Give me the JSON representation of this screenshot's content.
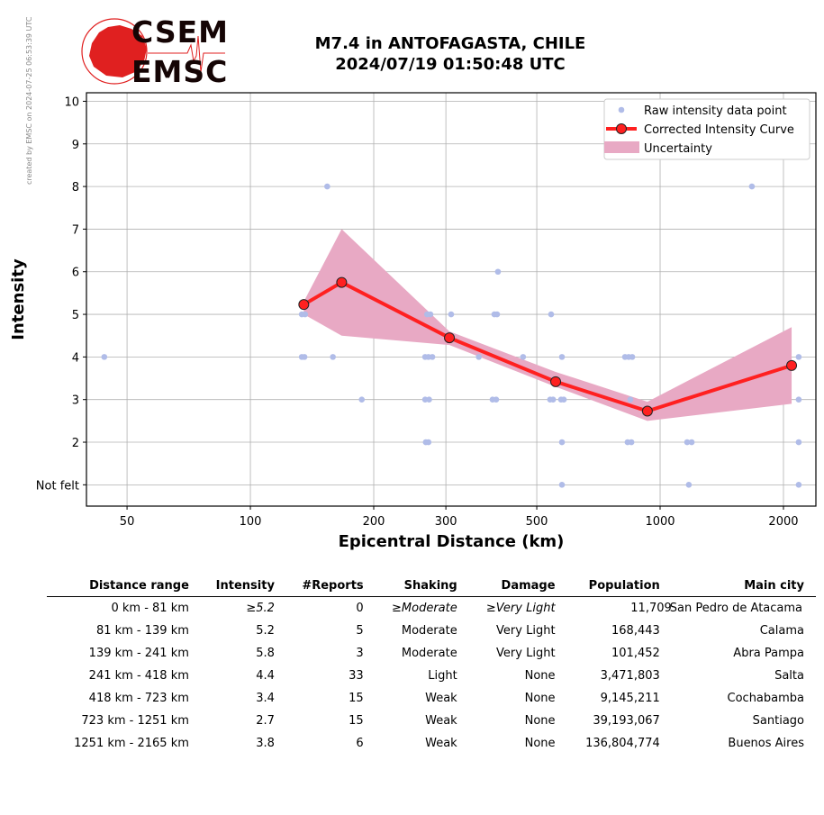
{
  "stamp": "created by EMSC on 2024-07-25 06:53:39 UTC",
  "logo": {
    "top": "CSEM",
    "bottom": "EMSC"
  },
  "title": {
    "line1": "M7.4 in ANTOFAGASTA, CHILE",
    "line2": "2024/07/19 01:50:48 UTC"
  },
  "colors": {
    "raw": "#b0bce8",
    "curve": "#ff2020",
    "band": "#e8a9c4",
    "logo_red": "#e02020"
  },
  "chart_data": {
    "type": "line",
    "xlabel": "Epicentral Distance (km)",
    "ylabel": "Intensity",
    "xscale": "log",
    "xlim": [
      39.8,
      2400
    ],
    "ylim": [
      0.5,
      10.2
    ],
    "xticks": [
      50,
      100,
      200,
      300,
      500,
      1000,
      2000
    ],
    "xtick_labels": [
      "50",
      "100",
      "200",
      "300",
      "500",
      "1000",
      "2000"
    ],
    "yticks": [
      1,
      2,
      3,
      4,
      5,
      6,
      7,
      8,
      9,
      10
    ],
    "ytick_labels": [
      "Not felt",
      "2",
      "3",
      "4",
      "5",
      "6",
      "7",
      "8",
      "9",
      "10"
    ],
    "grid": true,
    "legend": {
      "position": "top-right",
      "entries": [
        "Raw intensity data point",
        "Corrected Intensity Curve",
        "Uncertainty"
      ]
    },
    "raw_points": [
      [
        44,
        4
      ],
      [
        154,
        8
      ],
      [
        1675,
        8
      ],
      [
        402,
        6
      ],
      [
        133.5,
        5
      ],
      [
        136,
        5
      ],
      [
        270,
        5
      ],
      [
        275,
        5
      ],
      [
        309,
        5
      ],
      [
        394,
        5
      ],
      [
        400,
        5
      ],
      [
        542,
        5
      ],
      [
        133.5,
        4
      ],
      [
        135.5,
        4
      ],
      [
        159,
        4
      ],
      [
        267,
        4
      ],
      [
        272,
        4
      ],
      [
        278,
        4
      ],
      [
        361,
        4
      ],
      [
        463,
        4
      ],
      [
        576,
        4
      ],
      [
        821,
        4
      ],
      [
        838,
        4
      ],
      [
        855,
        4
      ],
      [
        2179,
        4
      ],
      [
        187,
        3
      ],
      [
        267,
        3
      ],
      [
        273,
        3
      ],
      [
        390,
        3
      ],
      [
        398,
        3
      ],
      [
        539,
        3
      ],
      [
        548,
        3
      ],
      [
        573,
        3
      ],
      [
        582,
        3
      ],
      [
        846,
        3
      ],
      [
        2179,
        3
      ],
      [
        268,
        2
      ],
      [
        272,
        2
      ],
      [
        576,
        2
      ],
      [
        833,
        2
      ],
      [
        851,
        2
      ],
      [
        1164,
        2
      ],
      [
        1194,
        2
      ],
      [
        2179,
        2
      ],
      [
        576,
        1
      ],
      [
        1175,
        1
      ],
      [
        2179,
        1
      ]
    ],
    "curve": {
      "x": [
        135,
        167,
        306,
        556,
        931,
        2094
      ],
      "y": [
        5.23,
        5.75,
        4.45,
        3.42,
        2.73,
        3.8
      ]
    },
    "uncertainty": {
      "x": [
        135,
        167,
        306,
        556,
        931,
        2094
      ],
      "upper": [
        5.3,
        7.0,
        4.6,
        3.65,
        2.95,
        4.7
      ],
      "lower": [
        5.0,
        4.5,
        4.28,
        3.3,
        2.5,
        2.9
      ]
    }
  },
  "table": {
    "headers": [
      "Distance range",
      "Intensity",
      "#Reports",
      "Shaking",
      "Damage",
      "Population",
      "Main city"
    ],
    "rows": [
      [
        "0 km -   81 km",
        "≥5.2",
        "0",
        "≥Moderate",
        "≥Very Light",
        "11,709",
        "San Pedro de Atacama"
      ],
      [
        "81 km -  139 km",
        "5.2",
        "5",
        "Moderate",
        "Very Light",
        "168,443",
        "Calama"
      ],
      [
        "139 km -  241 km",
        "5.8",
        "3",
        "Moderate",
        "Very Light",
        "101,452",
        "Abra Pampa"
      ],
      [
        "241 km -  418 km",
        "4.4",
        "33",
        "Light",
        "None",
        "3,471,803",
        "Salta"
      ],
      [
        "418 km -  723 km",
        "3.4",
        "15",
        "Weak",
        "None",
        "9,145,211",
        "Cochabamba"
      ],
      [
        "723 km - 1251 km",
        "2.7",
        "15",
        "Weak",
        "None",
        "39,193,067",
        "Santiago"
      ],
      [
        "1251 km - 2165 km",
        "3.8",
        "6",
        "Weak",
        "None",
        "136,804,774",
        "Buenos Aires"
      ]
    ]
  }
}
